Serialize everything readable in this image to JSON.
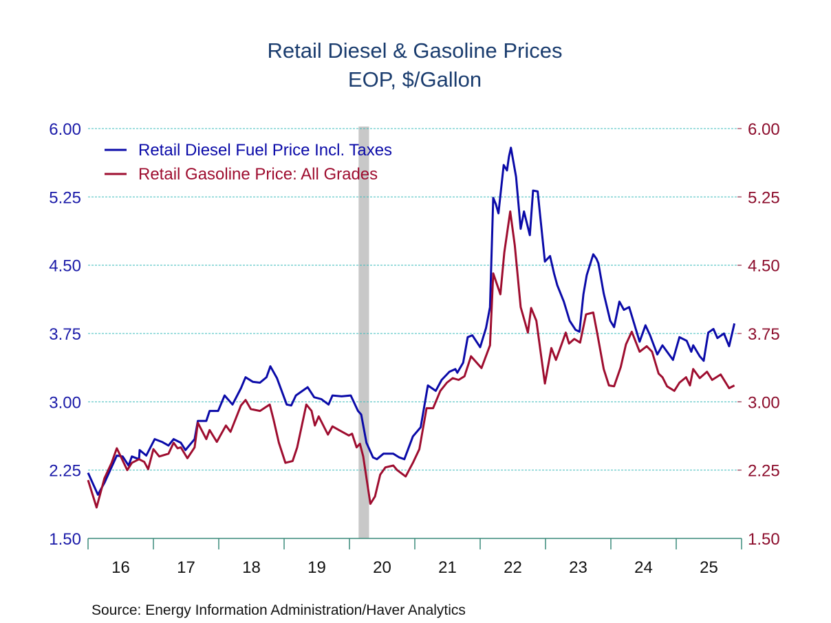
{
  "chart_data": {
    "type": "line",
    "title": "Retail Diesel & Gasoline Prices",
    "subtitle": "EOP, $/Gallon",
    "source": "Source:  Energy Information Administration/Haver Analytics",
    "xlim": [
      2016,
      2026
    ],
    "ylim": [
      1.5,
      6.0
    ],
    "y_ticks": [
      "1.50",
      "2.25",
      "3.00",
      "3.75",
      "4.50",
      "5.25",
      "6.00"
    ],
    "x_tick_labels": [
      "16",
      "17",
      "18",
      "19",
      "20",
      "21",
      "22",
      "23",
      "24",
      "25"
    ],
    "grid": "horizontal dashed",
    "legend_placement": "top-left",
    "recession_shading": [
      2020.14,
      2020.3
    ],
    "colors": {
      "diesel": "#0a0aa8",
      "gasoline": "#9e0d2f",
      "title": "#1a3c6e",
      "grid": "#3cbcbc",
      "axis": "#3a8a7a",
      "recession": "#c8c8c8"
    },
    "series": [
      {
        "name": "Retail Diesel Fuel Price Incl. Taxes",
        "key": "diesel",
        "axis": "left",
        "points": [
          [
            2016.0,
            2.22
          ],
          [
            2016.15,
            1.98
          ],
          [
            2016.25,
            2.11
          ],
          [
            2016.44,
            2.41
          ],
          [
            2016.53,
            2.4
          ],
          [
            2016.62,
            2.3
          ],
          [
            2016.67,
            2.4
          ],
          [
            2016.78,
            2.37
          ],
          [
            2016.79,
            2.47
          ],
          [
            2016.89,
            2.41
          ],
          [
            2017.02,
            2.59
          ],
          [
            2017.13,
            2.56
          ],
          [
            2017.23,
            2.52
          ],
          [
            2017.31,
            2.59
          ],
          [
            2017.42,
            2.55
          ],
          [
            2017.49,
            2.47
          ],
          [
            2017.63,
            2.59
          ],
          [
            2017.68,
            2.79
          ],
          [
            2017.81,
            2.79
          ],
          [
            2017.86,
            2.9
          ],
          [
            2017.99,
            2.9
          ],
          [
            2018.09,
            3.07
          ],
          [
            2018.21,
            2.97
          ],
          [
            2018.34,
            3.15
          ],
          [
            2018.41,
            3.27
          ],
          [
            2018.52,
            3.22
          ],
          [
            2018.63,
            3.21
          ],
          [
            2018.73,
            3.27
          ],
          [
            2018.79,
            3.39
          ],
          [
            2018.89,
            3.26
          ],
          [
            2019.04,
            2.97
          ],
          [
            2019.11,
            2.96
          ],
          [
            2019.18,
            3.07
          ],
          [
            2019.36,
            3.16
          ],
          [
            2019.46,
            3.05
          ],
          [
            2019.57,
            3.03
          ],
          [
            2019.68,
            2.97
          ],
          [
            2019.74,
            3.07
          ],
          [
            2019.88,
            3.06
          ],
          [
            2020.02,
            3.07
          ],
          [
            2020.13,
            2.9
          ],
          [
            2020.18,
            2.86
          ],
          [
            2020.26,
            2.55
          ],
          [
            2020.36,
            2.39
          ],
          [
            2020.42,
            2.37
          ],
          [
            2020.52,
            2.43
          ],
          [
            2020.67,
            2.43
          ],
          [
            2020.76,
            2.39
          ],
          [
            2020.84,
            2.37
          ],
          [
            2020.97,
            2.62
          ],
          [
            2021.09,
            2.72
          ],
          [
            2021.2,
            3.18
          ],
          [
            2021.32,
            3.12
          ],
          [
            2021.41,
            3.24
          ],
          [
            2021.53,
            3.33
          ],
          [
            2021.62,
            3.36
          ],
          [
            2021.65,
            3.32
          ],
          [
            2021.74,
            3.43
          ],
          [
            2021.81,
            3.71
          ],
          [
            2021.88,
            3.73
          ],
          [
            2022.0,
            3.6
          ],
          [
            2022.09,
            3.81
          ],
          [
            2022.15,
            4.04
          ],
          [
            2022.2,
            5.24
          ],
          [
            2022.24,
            5.17
          ],
          [
            2022.28,
            5.07
          ],
          [
            2022.36,
            5.6
          ],
          [
            2022.41,
            5.54
          ],
          [
            2022.44,
            5.69
          ],
          [
            2022.47,
            5.79
          ],
          [
            2022.55,
            5.47
          ],
          [
            2022.62,
            4.9
          ],
          [
            2022.67,
            5.09
          ],
          [
            2022.76,
            4.83
          ],
          [
            2022.81,
            5.32
          ],
          [
            2022.88,
            5.31
          ],
          [
            2022.99,
            4.54
          ],
          [
            2023.07,
            4.6
          ],
          [
            2023.13,
            4.41
          ],
          [
            2023.18,
            4.28
          ],
          [
            2023.28,
            4.1
          ],
          [
            2023.37,
            3.89
          ],
          [
            2023.46,
            3.79
          ],
          [
            2023.52,
            3.77
          ],
          [
            2023.58,
            4.18
          ],
          [
            2023.63,
            4.39
          ],
          [
            2023.73,
            4.62
          ],
          [
            2023.78,
            4.57
          ],
          [
            2023.81,
            4.52
          ],
          [
            2023.89,
            4.19
          ],
          [
            2023.99,
            3.89
          ],
          [
            2024.05,
            3.82
          ],
          [
            2024.13,
            4.1
          ],
          [
            2024.2,
            4.01
          ],
          [
            2024.28,
            4.04
          ],
          [
            2024.44,
            3.66
          ],
          [
            2024.53,
            3.84
          ],
          [
            2024.6,
            3.73
          ],
          [
            2024.71,
            3.52
          ],
          [
            2024.79,
            3.62
          ],
          [
            2024.86,
            3.55
          ],
          [
            2024.95,
            3.46
          ],
          [
            2025.05,
            3.71
          ],
          [
            2025.16,
            3.67
          ],
          [
            2025.23,
            3.55
          ],
          [
            2025.26,
            3.62
          ],
          [
            2025.36,
            3.5
          ],
          [
            2025.42,
            3.45
          ],
          [
            2025.49,
            3.76
          ],
          [
            2025.57,
            3.8
          ],
          [
            2025.63,
            3.7
          ],
          [
            2025.73,
            3.75
          ],
          [
            2025.81,
            3.61
          ],
          [
            2025.89,
            3.86
          ]
        ]
      },
      {
        "name": "Retail Gasoline Price: All Grades",
        "key": "gasoline",
        "axis": "right",
        "points": [
          [
            2016.0,
            2.14
          ],
          [
            2016.13,
            1.84
          ],
          [
            2016.25,
            2.16
          ],
          [
            2016.36,
            2.33
          ],
          [
            2016.44,
            2.49
          ],
          [
            2016.6,
            2.25
          ],
          [
            2016.67,
            2.33
          ],
          [
            2016.78,
            2.37
          ],
          [
            2016.86,
            2.34
          ],
          [
            2016.92,
            2.26
          ],
          [
            2017.0,
            2.48
          ],
          [
            2017.09,
            2.4
          ],
          [
            2017.23,
            2.43
          ],
          [
            2017.31,
            2.55
          ],
          [
            2017.37,
            2.49
          ],
          [
            2017.42,
            2.5
          ],
          [
            2017.52,
            2.38
          ],
          [
            2017.63,
            2.5
          ],
          [
            2017.68,
            2.77
          ],
          [
            2017.81,
            2.59
          ],
          [
            2017.86,
            2.69
          ],
          [
            2017.97,
            2.56
          ],
          [
            2018.11,
            2.74
          ],
          [
            2018.18,
            2.67
          ],
          [
            2018.34,
            2.96
          ],
          [
            2018.41,
            3.02
          ],
          [
            2018.49,
            2.92
          ],
          [
            2018.63,
            2.9
          ],
          [
            2018.78,
            2.97
          ],
          [
            2018.84,
            2.8
          ],
          [
            2018.92,
            2.55
          ],
          [
            2019.02,
            2.33
          ],
          [
            2019.13,
            2.35
          ],
          [
            2019.2,
            2.5
          ],
          [
            2019.34,
            2.97
          ],
          [
            2019.42,
            2.9
          ],
          [
            2019.47,
            2.74
          ],
          [
            2019.53,
            2.84
          ],
          [
            2019.67,
            2.64
          ],
          [
            2019.74,
            2.73
          ],
          [
            2019.84,
            2.69
          ],
          [
            2019.99,
            2.63
          ],
          [
            2020.04,
            2.65
          ],
          [
            2020.11,
            2.5
          ],
          [
            2020.16,
            2.54
          ],
          [
            2020.21,
            2.4
          ],
          [
            2020.32,
            1.88
          ],
          [
            2020.39,
            1.96
          ],
          [
            2020.47,
            2.2
          ],
          [
            2020.55,
            2.28
          ],
          [
            2020.67,
            2.3
          ],
          [
            2020.73,
            2.25
          ],
          [
            2020.86,
            2.18
          ],
          [
            2020.97,
            2.33
          ],
          [
            2021.07,
            2.48
          ],
          [
            2021.18,
            2.93
          ],
          [
            2021.28,
            2.93
          ],
          [
            2021.39,
            3.12
          ],
          [
            2021.49,
            3.21
          ],
          [
            2021.58,
            3.26
          ],
          [
            2021.67,
            3.24
          ],
          [
            2021.76,
            3.28
          ],
          [
            2021.86,
            3.5
          ],
          [
            2022.02,
            3.37
          ],
          [
            2022.15,
            3.62
          ],
          [
            2022.2,
            4.41
          ],
          [
            2022.31,
            4.18
          ],
          [
            2022.37,
            4.64
          ],
          [
            2022.46,
            5.09
          ],
          [
            2022.53,
            4.72
          ],
          [
            2022.62,
            4.04
          ],
          [
            2022.73,
            3.76
          ],
          [
            2022.78,
            4.03
          ],
          [
            2022.86,
            3.89
          ],
          [
            2022.99,
            3.2
          ],
          [
            2023.09,
            3.59
          ],
          [
            2023.16,
            3.46
          ],
          [
            2023.21,
            3.56
          ],
          [
            2023.31,
            3.76
          ],
          [
            2023.36,
            3.64
          ],
          [
            2023.44,
            3.69
          ],
          [
            2023.53,
            3.65
          ],
          [
            2023.62,
            3.96
          ],
          [
            2023.73,
            3.98
          ],
          [
            2023.79,
            3.76
          ],
          [
            2023.89,
            3.36
          ],
          [
            2023.97,
            3.18
          ],
          [
            2024.05,
            3.17
          ],
          [
            2024.15,
            3.38
          ],
          [
            2024.23,
            3.63
          ],
          [
            2024.32,
            3.77
          ],
          [
            2024.44,
            3.55
          ],
          [
            2024.55,
            3.61
          ],
          [
            2024.63,
            3.55
          ],
          [
            2024.73,
            3.31
          ],
          [
            2024.79,
            3.27
          ],
          [
            2024.86,
            3.17
          ],
          [
            2024.97,
            3.12
          ],
          [
            2025.05,
            3.21
          ],
          [
            2025.15,
            3.27
          ],
          [
            2025.21,
            3.18
          ],
          [
            2025.26,
            3.36
          ],
          [
            2025.36,
            3.26
          ],
          [
            2025.47,
            3.33
          ],
          [
            2025.55,
            3.24
          ],
          [
            2025.68,
            3.3
          ],
          [
            2025.81,
            3.15
          ],
          [
            2025.89,
            3.18
          ]
        ]
      }
    ]
  }
}
